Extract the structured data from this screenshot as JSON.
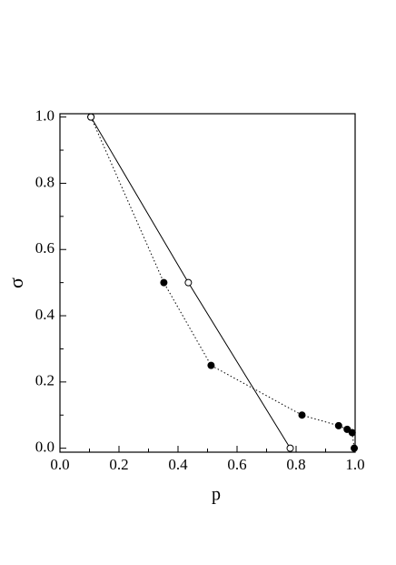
{
  "chart_data": {
    "type": "line",
    "x_label": "p",
    "y_label": "σ",
    "series": [
      {
        "style": "dotted",
        "marker": "filled",
        "color": "#000000",
        "x": [
          0.105,
          0.352,
          0.512,
          0.82,
          0.944,
          0.973,
          0.99,
          0.997
        ],
        "values": [
          1.0,
          0.5,
          0.25,
          0.1,
          0.068,
          0.057,
          0.047,
          0.0
        ]
      },
      {
        "style": "solid",
        "marker": "open",
        "color": "#000000",
        "x": [
          0.105,
          0.435,
          0.78
        ],
        "values": [
          1.0,
          0.5,
          0.0
        ]
      }
    ],
    "xlim": [
      0,
      1
    ],
    "ylim": [
      -0.012,
      1.01
    ],
    "xticks": [
      {
        "value": 0,
        "label": "0.0"
      },
      0.2,
      0.4,
      0.6,
      0.8,
      {
        "value": 1,
        "label": "1.0"
      }
    ],
    "yticks": [
      {
        "value": 0,
        "label": "0.0"
      },
      0.2,
      0.4,
      0.6,
      0.8,
      {
        "value": 1,
        "label": "1.0"
      }
    ],
    "xminorticks": [
      0.1,
      0.3,
      0.5,
      0.7,
      0.9
    ],
    "yminorticks": [
      0.1,
      0.3,
      0.5,
      0.7,
      0.9
    ]
  }
}
